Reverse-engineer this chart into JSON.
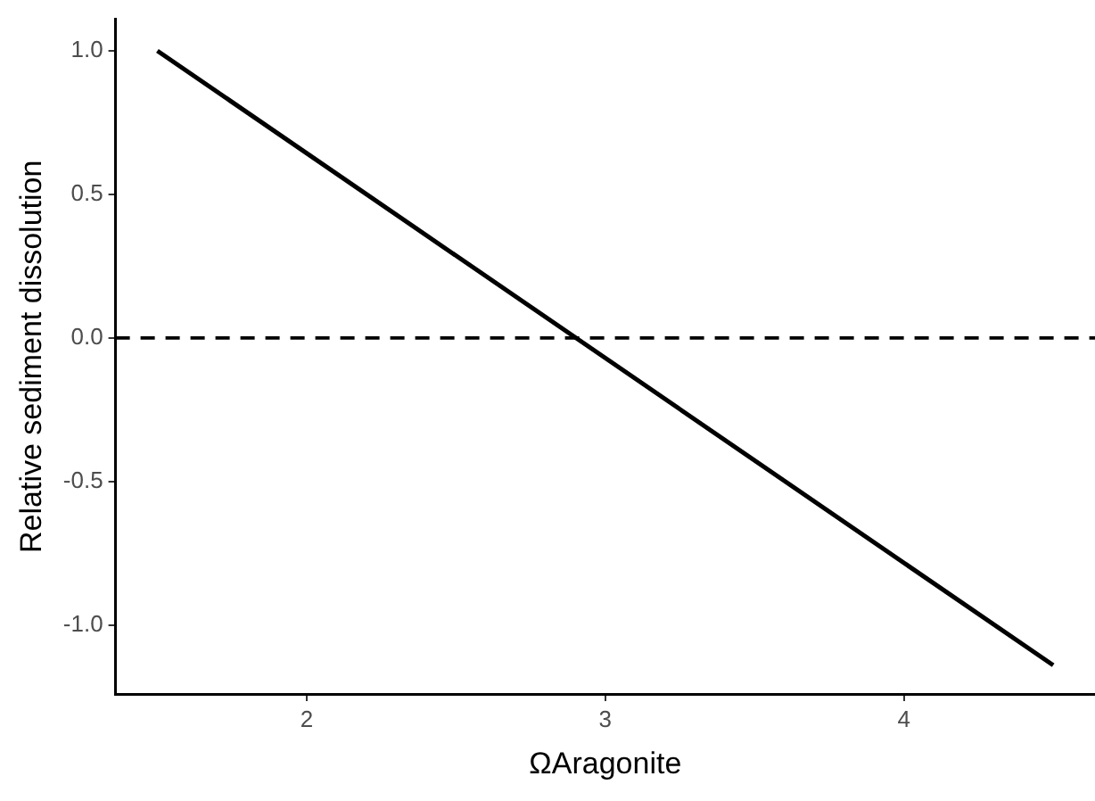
{
  "chart_data": {
    "type": "line",
    "xlabel": "ΩAragonite",
    "ylabel": "Relative sediment dissolution",
    "x": [
      1.5,
      4.5
    ],
    "series": [
      {
        "color": "#000000",
        "values": [
          1.0,
          -1.14
        ]
      }
    ],
    "xlim": [
      1.36,
      4.64
    ],
    "ylim": [
      -1.24,
      1.11
    ],
    "xticks": [
      2,
      3,
      4
    ],
    "yticks": [
      {
        "value": -1,
        "label": "-1.0"
      },
      -0.5,
      {
        "value": 0,
        "label": "0.0"
      },
      0.5,
      {
        "value": 1,
        "label": "1.0"
      }
    ],
    "ref_lines": [
      {
        "axis": "y",
        "value": 0,
        "line_style": "dashed",
        "color": "#000000"
      }
    ],
    "grid": false,
    "legend": false,
    "marker": "none",
    "line_style": "solid"
  }
}
